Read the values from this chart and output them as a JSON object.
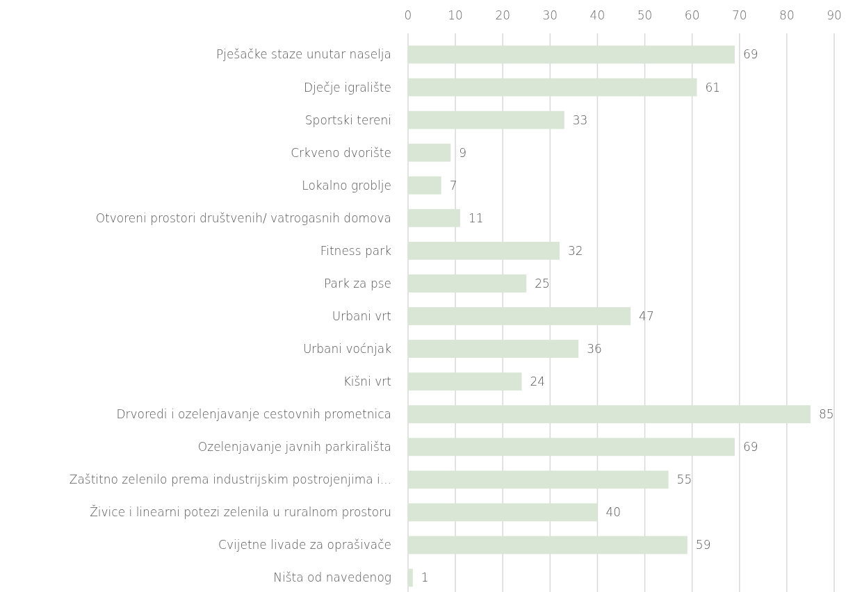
{
  "chart_data": {
    "type": "bar",
    "orientation": "horizontal",
    "categories": [
      "Pješačke staze unutar naselja",
      "Dječje igralište",
      "Sportski tereni",
      "Crkveno dvorište",
      "Lokalno groblje",
      "Otvoreni prostori društvenih/ vatrogasnih domova",
      "Fitness park",
      "Park za pse",
      "Urbani vrt",
      "Urbani voćnjak",
      "Kišni vrt",
      "Drvoredi i ozelenjavanje cestovnih prometnica",
      "Ozelenjavanje javnih parkirališta",
      "Zaštitno zelenilo prema industrijskim postrojenjima i...",
      "Živice i linearni potezi zelenila u ruralnom prostoru",
      "Cvijetne livade za oprašivače",
      "Ništa od navedenog"
    ],
    "values": [
      69,
      61,
      33,
      9,
      7,
      11,
      32,
      25,
      47,
      36,
      24,
      85,
      69,
      55,
      40,
      59,
      1
    ],
    "color": "#d9e6d5",
    "xlim": [
      0,
      90
    ],
    "xticks": [
      0,
      10,
      20,
      30,
      40,
      50,
      60,
      70,
      80,
      90
    ],
    "grid": "x",
    "data_labels": true
  }
}
